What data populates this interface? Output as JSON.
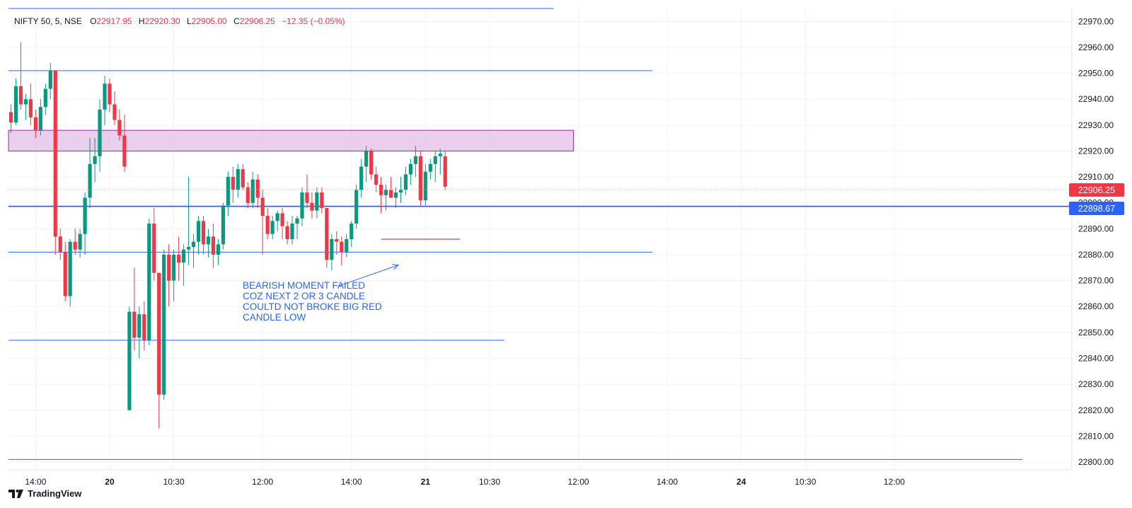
{
  "header": {
    "symbol": "NIFTY 50, 5, NSE",
    "o_label": "O",
    "o_value": "22917.95",
    "h_label": "H",
    "h_value": "22920.30",
    "l_label": "L",
    "l_value": "22905.00",
    "c_label": "C",
    "c_value": "22906.25",
    "change": "−12.35 (−0.05%)"
  },
  "colors": {
    "up": "#089981",
    "down": "#f23645",
    "line_blue": "#2962ff",
    "zone_fill": "#e1bee7",
    "zone_stroke": "#9c27b0",
    "grid": "#f0f3fa",
    "axis_text": "#131722"
  },
  "price_labels": {
    "last": "22906.25",
    "line": "22898.67"
  },
  "annotation": {
    "lines": [
      "BEARISH MOMENT FAILED",
      "COZ NEXT 2 OR 3 CANDLE",
      "COULTD NOT BROKE BIG RED",
      "CANDLE LOW"
    ]
  },
  "footer": {
    "brand": "TradingView",
    "logo_icon": "tradingview-logo-icon"
  },
  "chart_data": {
    "type": "candlestick",
    "symbol": "NIFTY 50",
    "timeframe": "5",
    "exchange": "NSE",
    "y_ticks": [
      22970,
      22960,
      22950,
      22940,
      22930,
      22920,
      22910,
      22900,
      22890,
      22880,
      22870,
      22860,
      22850,
      22840,
      22830,
      22820,
      22810,
      22800
    ],
    "y_tick_labels": [
      "22970.00",
      "22960.00",
      "22950.00",
      "22940.00",
      "22930.00",
      "22920.00",
      "22910.00",
      "22900.00",
      "22890.00",
      "22880.00",
      "22870.00",
      "22860.00",
      "22850.00",
      "22840.00",
      "22830.00",
      "22820.00",
      "22810.00",
      "22800.00"
    ],
    "ylim": [
      22797,
      22975
    ],
    "x_ticks": [
      {
        "label": "14:00",
        "index": 5,
        "bold": false
      },
      {
        "label": "20",
        "index": 20,
        "bold": true
      },
      {
        "label": "10:30",
        "index": 33,
        "bold": false
      },
      {
        "label": "12:00",
        "index": 51,
        "bold": false
      },
      {
        "label": "14:00",
        "index": 69,
        "bold": false
      },
      {
        "label": "21",
        "index": 84,
        "bold": true
      },
      {
        "label": "10:30",
        "index": 97,
        "bold": false
      },
      {
        "label": "12:00",
        "index": 115,
        "bold": false
      },
      {
        "label": "14:00",
        "index": 133,
        "bold": false
      },
      {
        "label": "24",
        "index": 148,
        "bold": true
      },
      {
        "label": "10:30",
        "index": 161,
        "bold": false
      },
      {
        "label": "12:00",
        "index": 179,
        "bold": false
      }
    ],
    "x_range": [
      -0.5,
      215
    ],
    "candles": [
      [
        22935,
        22938,
        22927,
        22931
      ],
      [
        22931,
        22948,
        22930,
        22945
      ],
      [
        22945,
        22962,
        22936,
        22938
      ],
      [
        22938,
        22942,
        22932,
        22940
      ],
      [
        22940,
        22946,
        22930,
        22933
      ],
      [
        22933,
        22936,
        22925,
        22928
      ],
      [
        22928,
        22940,
        22926,
        22937
      ],
      [
        22937,
        22946,
        22934,
        22944
      ],
      [
        22944,
        22954,
        22940,
        22951
      ],
      [
        22951,
        22951,
        22880,
        22887
      ],
      [
        22887,
        22890,
        22878,
        22881
      ],
      [
        22881,
        22885,
        22862,
        22864
      ],
      [
        22864,
        22886,
        22860,
        22885
      ],
      [
        22885,
        22890,
        22880,
        22882
      ],
      [
        22882,
        22890,
        22879,
        22888
      ],
      [
        22888,
        22904,
        22880,
        22902
      ],
      [
        22902,
        22925,
        22898,
        22915
      ],
      [
        22915,
        22925,
        22908,
        22918
      ],
      [
        22918,
        22940,
        22912,
        22936
      ],
      [
        22936,
        22949,
        22930,
        22946
      ],
      [
        22946,
        22948,
        22935,
        22938
      ],
      [
        22938,
        22943,
        22930,
        22932
      ],
      [
        22932,
        22936,
        22924,
        22926
      ],
      [
        22926,
        22934,
        22912,
        22914
      ],
      [
        22820,
        22860,
        22820,
        22858
      ],
      [
        22858,
        22875,
        22843,
        22848
      ],
      [
        22848,
        22860,
        22840,
        22857
      ],
      [
        22857,
        22862,
        22843,
        22847
      ],
      [
        22847,
        22894,
        22845,
        22892
      ],
      [
        22892,
        22898,
        22870,
        22873
      ],
      [
        22873,
        22873,
        22813,
        22826
      ],
      [
        22826,
        22882,
        22824,
        22880
      ],
      [
        22880,
        22884,
        22860,
        22870
      ],
      [
        22870,
        22882,
        22862,
        22880
      ],
      [
        22880,
        22887,
        22870,
        22877
      ],
      [
        22877,
        22884,
        22868,
        22882
      ],
      [
        22882,
        22910,
        22876,
        22883
      ],
      [
        22883,
        22888,
        22875,
        22885
      ],
      [
        22885,
        22895,
        22880,
        22893
      ],
      [
        22893,
        22895,
        22880,
        22884
      ],
      [
        22884,
        22890,
        22879,
        22887
      ],
      [
        22887,
        22892,
        22875,
        22880
      ],
      [
        22880,
        22886,
        22876,
        22884
      ],
      [
        22884,
        22900,
        22882,
        22899
      ],
      [
        22899,
        22912,
        22895,
        22910
      ],
      [
        22910,
        22914,
        22900,
        22905
      ],
      [
        22905,
        22915,
        22902,
        22913
      ],
      [
        22913,
        22915,
        22905,
        22906
      ],
      [
        22906,
        22908,
        22898,
        22900
      ],
      [
        22900,
        22912,
        22898,
        22909
      ],
      [
        22909,
        22911,
        22898,
        22902
      ],
      [
        22902,
        22905,
        22880,
        22895
      ],
      [
        22895,
        22898,
        22886,
        22888
      ],
      [
        22888,
        22895,
        22886,
        22893
      ],
      [
        22893,
        22897,
        22889,
        22896
      ],
      [
        22896,
        22898,
        22886,
        22891
      ],
      [
        22891,
        22893,
        22884,
        22886
      ],
      [
        22886,
        22895,
        22884,
        22892
      ],
      [
        22892,
        22895,
        22886,
        22894
      ],
      [
        22894,
        22906,
        22891,
        22904
      ],
      [
        22904,
        22911,
        22898,
        22900
      ],
      [
        22900,
        22904,
        22894,
        22897
      ],
      [
        22897,
        22906,
        22894,
        22904
      ],
      [
        22904,
        22906,
        22896,
        22898
      ],
      [
        22898,
        22898,
        22875,
        22878
      ],
      [
        22878,
        22888,
        22874,
        22886
      ],
      [
        22886,
        22889,
        22880,
        22885
      ],
      [
        22885,
        22887,
        22876,
        22881
      ],
      [
        22881,
        22888,
        22879,
        22886
      ],
      [
        22886,
        22893,
        22883,
        22892
      ],
      [
        22892,
        22907,
        22890,
        22905
      ],
      [
        22905,
        22917,
        22902,
        22914
      ],
      [
        22914,
        22922,
        22908,
        22920
      ],
      [
        22920,
        22921,
        22909,
        22911
      ],
      [
        22911,
        22914,
        22904,
        22907
      ],
      [
        22907,
        22910,
        22896,
        22903
      ],
      [
        22903,
        22907,
        22897,
        22905
      ],
      [
        22905,
        22910,
        22902,
        22902
      ],
      [
        22902,
        22906,
        22898,
        22904
      ],
      [
        22904,
        22910,
        22900,
        22905
      ],
      [
        22905,
        22914,
        22903,
        22911
      ],
      [
        22911,
        22917,
        22907,
        22915
      ],
      [
        22915,
        22922,
        22910,
        22918
      ],
      [
        22918,
        22920,
        22899,
        22901
      ],
      [
        22901,
        22915,
        22899,
        22912
      ],
      [
        22912,
        22917,
        22909,
        22915
      ],
      [
        22915,
        22920,
        22908,
        22918
      ],
      [
        22918,
        22921,
        22911,
        22919
      ],
      [
        22917.95,
        22920.3,
        22905.0,
        22906.25
      ]
    ],
    "horizontal_lines": [
      {
        "price": 22975,
        "x_start": -0.5,
        "x_end": 110
      },
      {
        "price": 22951,
        "x_start": -0.5,
        "x_end": 130
      },
      {
        "price": 22898.67,
        "x_start": -0.5,
        "x_end": 215,
        "thick": true
      },
      {
        "price": 22881,
        "x_start": -0.5,
        "x_end": 130
      },
      {
        "price": 22847,
        "x_start": -0.5,
        "x_end": 100
      },
      {
        "price": 22801,
        "x_start": -0.5,
        "x_end": 205
      }
    ],
    "zone": {
      "price_top": 22928,
      "price_bottom": 22920,
      "x_start": -0.5,
      "x_end": 114
    },
    "red_marker_line": {
      "price": 22886,
      "x_start": 75,
      "x_end": 91
    },
    "annotation_arrow": {
      "from_index": 66.5,
      "from_price": 22868,
      "to_index": 78.5,
      "to_price": 22876
    }
  }
}
